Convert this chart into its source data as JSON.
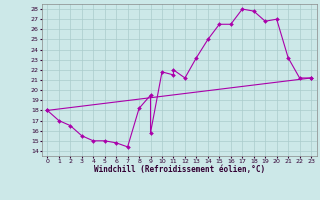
{
  "xlabel": "Windchill (Refroidissement éolien,°C)",
  "ylabel": "",
  "bg_color": "#cce8e8",
  "line_color": "#aa00aa",
  "grid_color": "#aacccc",
  "xlim": [
    -0.5,
    23.5
  ],
  "ylim": [
    13.5,
    28.5
  ],
  "xticks": [
    0,
    1,
    2,
    3,
    4,
    5,
    6,
    7,
    8,
    9,
    10,
    11,
    12,
    13,
    14,
    15,
    16,
    17,
    18,
    19,
    20,
    21,
    22,
    23
  ],
  "yticks": [
    14,
    15,
    16,
    17,
    18,
    19,
    20,
    21,
    22,
    23,
    24,
    25,
    26,
    27,
    28
  ],
  "points": [
    [
      0,
      18
    ],
    [
      1,
      17
    ],
    [
      2,
      16.5
    ],
    [
      3,
      15.5
    ],
    [
      4,
      15
    ],
    [
      5,
      15
    ],
    [
      6,
      14.8
    ],
    [
      7,
      14.4
    ],
    [
      8,
      18.2
    ],
    [
      9,
      19.5
    ],
    [
      9,
      15.8
    ],
    [
      10,
      21.8
    ],
    [
      11,
      21.5
    ],
    [
      11,
      22
    ],
    [
      12,
      21.2
    ],
    [
      13,
      23.2
    ],
    [
      14,
      25
    ],
    [
      15,
      26.5
    ],
    [
      16,
      26.5
    ],
    [
      17,
      28
    ],
    [
      18,
      27.8
    ],
    [
      19,
      26.8
    ],
    [
      20,
      27
    ],
    [
      21,
      23.2
    ],
    [
      22,
      21.2
    ],
    [
      23,
      21.2
    ]
  ],
  "straight_line": [
    [
      0,
      18
    ],
    [
      23,
      21.2
    ]
  ],
  "tick_fontsize": 4.5,
  "label_fontsize": 5.5
}
